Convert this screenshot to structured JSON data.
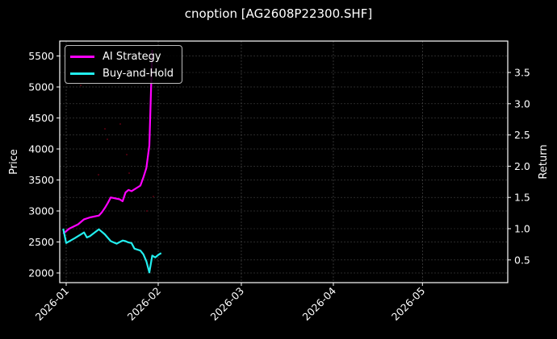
{
  "chart_data": {
    "type": "line",
    "title": "cnoption [AG2608P22300.SHF]",
    "xlabel": "",
    "ylabel": "Price",
    "ylabel_right": "Return",
    "x_ticks": [
      "2026-01",
      "2026-02",
      "2026-03",
      "2026-04",
      "2026-05"
    ],
    "y_ticks_left": [
      2000,
      2500,
      3000,
      3500,
      4000,
      4500,
      5000,
      5500
    ],
    "y_ticks_right": [
      0.5,
      1.0,
      1.5,
      2.0,
      2.5,
      3.0,
      3.5
    ],
    "ylim_left": [
      1850,
      5700
    ],
    "ylim_right": [
      0.3,
      4.0
    ],
    "grid": true,
    "legend_position": "upper left",
    "series": [
      {
        "name": "AI Strategy",
        "axis": "right",
        "color": "#ff00ff",
        "x": [
          "2025-12-31",
          "2026-01-02",
          "2026-01-05",
          "2026-01-07",
          "2026-01-09",
          "2026-01-12",
          "2026-01-13",
          "2026-01-14",
          "2026-01-15",
          "2026-01-16",
          "2026-01-19",
          "2026-01-20",
          "2026-01-21",
          "2026-01-22",
          "2026-01-23",
          "2026-01-26",
          "2026-01-27",
          "2026-01-28",
          "2026-01-29",
          "2026-01-30"
        ],
        "values": [
          0.92,
          1.0,
          1.07,
          1.15,
          1.18,
          1.21,
          1.26,
          1.33,
          1.41,
          1.5,
          1.47,
          1.44,
          1.58,
          1.62,
          1.6,
          1.69,
          1.82,
          1.97,
          2.33,
          4.1
        ]
      },
      {
        "name": "Buy-and-Hold",
        "axis": "right",
        "color": "#22eeee",
        "x": [
          "2025-12-31",
          "2026-01-01",
          "2026-01-04",
          "2026-01-07",
          "2026-01-08",
          "2026-01-09",
          "2026-01-12",
          "2026-01-14",
          "2026-01-16",
          "2026-01-18",
          "2026-01-20",
          "2026-01-21",
          "2026-01-22",
          "2026-01-23",
          "2026-01-24",
          "2026-01-26",
          "2026-01-27",
          "2026-01-28",
          "2026-01-29",
          "2026-01-30",
          "2026-01-31",
          "2026-02-01",
          "2026-02-02"
        ],
        "values": [
          1.0,
          0.77,
          0.85,
          0.94,
          0.86,
          0.88,
          0.99,
          0.91,
          0.8,
          0.76,
          0.81,
          0.8,
          0.78,
          0.77,
          0.68,
          0.65,
          0.59,
          0.48,
          0.3,
          0.57,
          0.54,
          0.58,
          0.61
        ]
      }
    ]
  },
  "legend": {
    "items": [
      {
        "label": "AI Strategy",
        "color": "#ff00ff"
      },
      {
        "label": "Buy-and-Hold",
        "color": "#22eeee"
      }
    ]
  }
}
